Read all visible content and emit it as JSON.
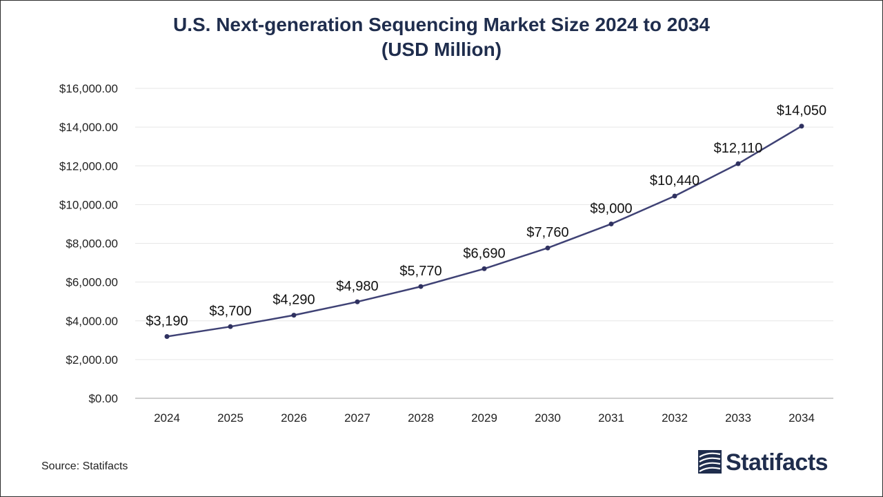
{
  "chart_data": {
    "type": "line",
    "title": "U.S. Next-generation Sequencing Market Size 2024 to 2034",
    "subtitle": "(USD Million)",
    "categories": [
      "2024",
      "2025",
      "2026",
      "2027",
      "2028",
      "2029",
      "2030",
      "2031",
      "2032",
      "2033",
      "2034"
    ],
    "series": [
      {
        "name": "Market Size",
        "values": [
          3190,
          3700,
          4290,
          4980,
          5770,
          6690,
          7760,
          9000,
          10440,
          12110,
          14050
        ],
        "labels": [
          "$3,190",
          "$3,700",
          "$4,290",
          "$4,980",
          "$5,770",
          "$6,690",
          "$7,760",
          "$9,000",
          "$10,440",
          "$12,110",
          "$14,050"
        ],
        "color": "#3f4275"
      }
    ],
    "ylim": [
      0,
      16000
    ],
    "yticks": [
      0,
      2000,
      4000,
      6000,
      8000,
      10000,
      12000,
      14000,
      16000
    ],
    "ytick_labels": [
      "$0.00",
      "$2,000.00",
      "$4,000.00",
      "$6,000.00",
      "$8,000.00",
      "$10,000.00",
      "$12,000.00",
      "$14,000.00",
      "$16,000.00"
    ],
    "xlabel": "",
    "ylabel": "",
    "grid": true
  },
  "footer": {
    "source": "Source: Statifacts",
    "brand": "Statifacts"
  },
  "colors": {
    "title": "#1f2d4d",
    "grid": "#e6e6e6",
    "axis": "#bfbfbf",
    "brand": "#1f2d4d"
  }
}
